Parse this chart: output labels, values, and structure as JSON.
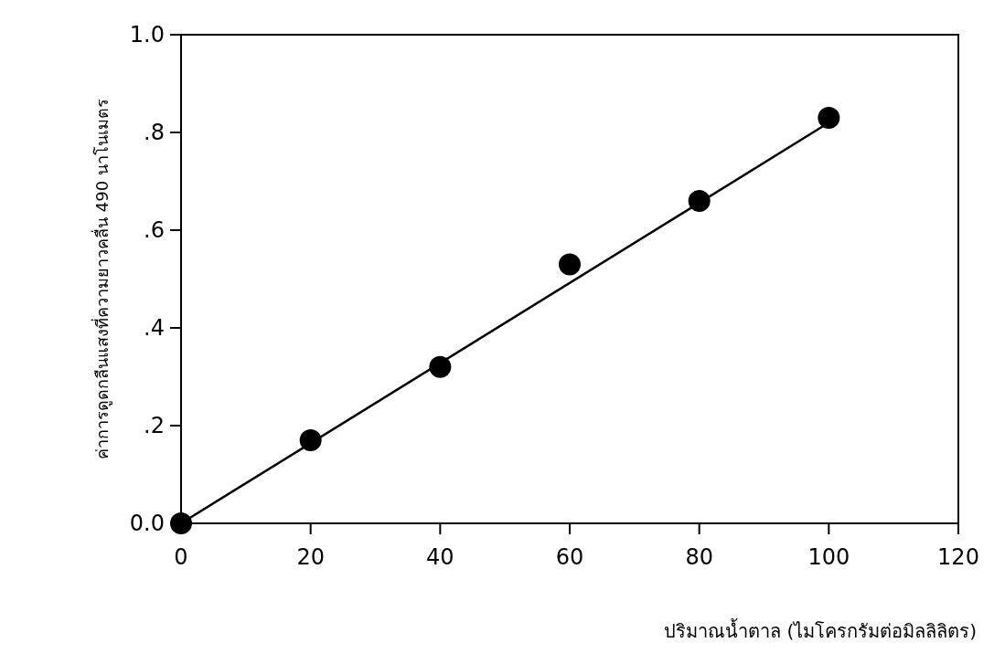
{
  "chart_data": {
    "type": "scatter",
    "xlabel": "ปริมาณน้ำตาล (ไมโครกรัมต่อมิลลิลิตร)",
    "ylabel": "ค่าการดูดกลืนแสงที่ความยาวคลื่น 490 นาโนเมตร",
    "x": [
      0,
      20,
      40,
      60,
      80,
      100
    ],
    "series": [
      {
        "color": "#000000",
        "marker": "circle",
        "values": [
          0,
          0.17,
          0.32,
          0.53,
          0.66,
          0.83
        ]
      },
      {
        "type": "line",
        "color": "#000000",
        "marker": "none",
        "line_style": "solid",
        "x": [
          0,
          100
        ],
        "values": [
          0,
          0.82
        ]
      }
    ],
    "xlim": [
      0,
      120
    ],
    "xticks": [
      0,
      20,
      40,
      60,
      80,
      100,
      120
    ],
    "ylim": [
      0,
      1
    ],
    "yticks": [
      {
        "value": 0,
        "label": "0.0"
      },
      {
        "value": 0.2,
        "label": ".2"
      },
      {
        "value": 0.4,
        "label": ".4"
      },
      {
        "value": 0.6,
        "label": ".6"
      },
      {
        "value": 0.8,
        "label": ".8"
      },
      {
        "value": 1,
        "label": "1.0"
      }
    ],
    "grid": false
  }
}
